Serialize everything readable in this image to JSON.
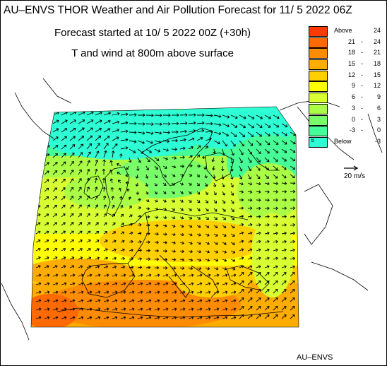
{
  "title": "AU–ENVS THOR Weather and Air Pollution Forecast for 11/ 5 2022  06Z",
  "subtitle1": "Forecast started at 10/ 5 2022  00Z (+30h)",
  "subtitle2": "T and wind at 800m above surface",
  "credit": "AU–ENVS",
  "wind_scale_label": "20 m/s",
  "legend": [
    {
      "lo": "Above",
      "hi": "24",
      "color": "#ff3a00",
      "kind": "above"
    },
    {
      "lo": "21",
      "hi": "24",
      "color": "#ff6a00",
      "kind": "range"
    },
    {
      "lo": "18",
      "hi": "21",
      "color": "#ff8c00",
      "kind": "range"
    },
    {
      "lo": "15",
      "hi": "18",
      "color": "#ffac00",
      "kind": "range"
    },
    {
      "lo": "12",
      "hi": "15",
      "color": "#ffd000",
      "kind": "range"
    },
    {
      "lo": "9",
      "hi": "12",
      "color": "#ffff00",
      "kind": "range"
    },
    {
      "lo": "6",
      "hi": "9",
      "color": "#d8ff32",
      "kind": "range"
    },
    {
      "lo": "3",
      "hi": "6",
      "color": "#aaff46",
      "kind": "range"
    },
    {
      "lo": "0",
      "hi": "3",
      "color": "#78ff6a",
      "kind": "range"
    },
    {
      "lo": "-3",
      "hi": "0",
      "color": "#46ff96",
      "kind": "range"
    },
    {
      "lo": "Below",
      "hi": "-3",
      "color": "#2effd4",
      "kind": "below",
      "swatch_text": "b"
    }
  ]
}
